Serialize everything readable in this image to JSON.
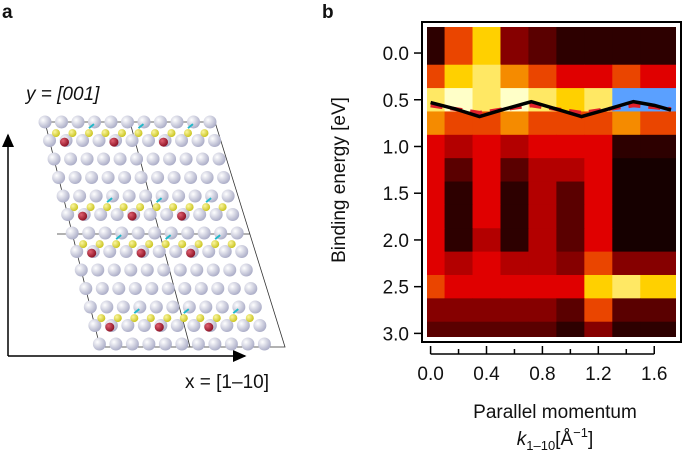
{
  "panel_a": {
    "label": "a",
    "y_axis_label": "y = [001]",
    "x_axis_label": "x = [1–10]"
  },
  "chart_data": {
    "type": "heatmap",
    "panel_label": "b",
    "y_label": "Binding energy [eV]",
    "x_label": "Parallel momentum",
    "x_unit_label": {
      "symbol": "k",
      "subscript": "1–10",
      "unit": "[Å",
      "superscript": "−1",
      "close": "]"
    },
    "xlim": [
      -0.04,
      1.77
    ],
    "ylim": [
      -0.3,
      3.06
    ],
    "xticks": [
      {
        "value": 0,
        "label": "0.0"
      },
      {
        "value": 0.4,
        "label": "0.4"
      },
      {
        "value": 0.8,
        "label": "0.8"
      },
      {
        "value": 1.2,
        "label": "1.2"
      },
      {
        "value": 1.6,
        "label": "1.6"
      }
    ],
    "xminor": [
      0.2,
      0.6,
      1.0,
      1.4
    ],
    "yticks": [
      {
        "value": 0,
        "label": "0.0"
      },
      {
        "value": 0.5,
        "label": "0.5"
      },
      {
        "value": 1,
        "label": "1.0"
      },
      {
        "value": 1.5,
        "label": "1.5"
      },
      {
        "value": 2,
        "label": "2.0"
      },
      {
        "value": 2.5,
        "label": "2.5"
      },
      {
        "value": 3,
        "label": "3.0"
      }
    ],
    "y_inverted": true,
    "colorscale": [
      [
        0,
        "#000000"
      ],
      [
        0.5,
        "#e00000"
      ],
      [
        0.8,
        "#ffd000"
      ],
      [
        1,
        "#ffffc8"
      ],
      [
        1.2,
        "#5aa0ff"
      ]
    ],
    "x": [
      0,
      0.2,
      0.4,
      0.6,
      0.8,
      1.0,
      1.2,
      1.4,
      1.6
    ],
    "y": [
      0,
      0.25,
      0.5,
      0.75,
      1.0,
      1.25,
      1.5,
      1.75,
      2.0,
      2.25,
      2.5,
      2.75,
      3.0
    ],
    "z": [
      [
        0.1,
        0.6,
        0.8,
        0.3,
        0.2,
        0.1,
        0.1,
        0.1,
        0.1
      ],
      [
        0.6,
        0.8,
        0.9,
        0.7,
        0.6,
        0.5,
        0.5,
        0.6,
        0.5
      ],
      [
        0.9,
        1.0,
        0.9,
        1.0,
        0.9,
        0.8,
        0.9,
        1.2,
        1.2
      ],
      [
        0.7,
        0.6,
        0.6,
        0.7,
        0.6,
        0.6,
        0.6,
        0.7,
        0.6
      ],
      [
        0.5,
        0.4,
        0.5,
        0.4,
        0.5,
        0.5,
        0.5,
        0.1,
        0.1
      ],
      [
        0.5,
        0.2,
        0.5,
        0.2,
        0.4,
        0.4,
        0.5,
        0.05,
        0.05
      ],
      [
        0.5,
        0.1,
        0.5,
        0.1,
        0.4,
        0.2,
        0.5,
        0.05,
        0.05
      ],
      [
        0.5,
        0.1,
        0.5,
        0.1,
        0.4,
        0.2,
        0.5,
        0.05,
        0.05
      ],
      [
        0.5,
        0.1,
        0.4,
        0.1,
        0.4,
        0.2,
        0.5,
        0.05,
        0.05
      ],
      [
        0.5,
        0.4,
        0.5,
        0.4,
        0.4,
        0.3,
        0.6,
        0.3,
        0.3
      ],
      [
        0.6,
        0.5,
        0.5,
        0.5,
        0.5,
        0.5,
        0.8,
        0.9,
        0.8
      ],
      [
        0.3,
        0.3,
        0.3,
        0.3,
        0.3,
        0.2,
        0.6,
        0.2,
        0.2
      ],
      [
        0.2,
        0.2,
        0.2,
        0.2,
        0.2,
        0.1,
        0.3,
        0.1,
        0.1
      ]
    ],
    "lines": [
      {
        "color": "#e0202a",
        "dashed": true,
        "x": [
          0,
          0.18,
          0.35,
          0.53,
          0.72,
          0.9,
          1.08,
          1.27,
          1.45,
          1.6,
          1.72
        ],
        "values": [
          0.56,
          0.6,
          0.64,
          0.6,
          0.56,
          0.6,
          0.64,
          0.6,
          0.56,
          0.58,
          0.6
        ]
      },
      {
        "color": "#000000",
        "dashed": false,
        "x": [
          0,
          0.18,
          0.35,
          0.53,
          0.72,
          0.9,
          1.08,
          1.27,
          1.45,
          1.6,
          1.72
        ],
        "values": [
          0.53,
          0.6,
          0.68,
          0.6,
          0.52,
          0.6,
          0.68,
          0.6,
          0.52,
          0.56,
          0.61
        ]
      }
    ]
  }
}
